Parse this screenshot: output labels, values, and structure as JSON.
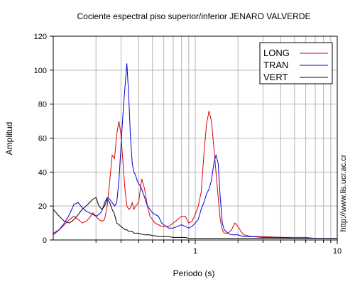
{
  "chart_data": {
    "type": "line",
    "title": "Cociente espectral piso superior/inferior  JENARO VALVERDE",
    "xlabel": "Periodo (s)",
    "ylabel": "Amplitud",
    "x_scale": "log",
    "xlim": [
      0.1,
      10
    ],
    "ylim": [
      0,
      120
    ],
    "x_tick_labels": [
      {
        "value": 1,
        "label": "1"
      },
      {
        "value": 10,
        "label": "10"
      }
    ],
    "y_ticks": [
      0,
      20,
      40,
      60,
      80,
      100,
      120
    ],
    "grid": true,
    "legend_position": "top-right",
    "series": [
      {
        "name": "LONG",
        "color": "#e00000",
        "x": [
          0.1,
          0.11,
          0.12,
          0.13,
          0.14,
          0.15,
          0.16,
          0.17,
          0.18,
          0.19,
          0.2,
          0.21,
          0.22,
          0.23,
          0.24,
          0.25,
          0.26,
          0.27,
          0.28,
          0.29,
          0.3,
          0.31,
          0.32,
          0.33,
          0.34,
          0.35,
          0.36,
          0.37,
          0.38,
          0.39,
          0.4,
          0.41,
          0.42,
          0.44,
          0.46,
          0.48,
          0.5,
          0.52,
          0.55,
          0.58,
          0.6,
          0.65,
          0.7,
          0.75,
          0.8,
          0.85,
          0.9,
          0.95,
          1.0,
          1.05,
          1.1,
          1.15,
          1.2,
          1.25,
          1.3,
          1.35,
          1.4,
          1.45,
          1.5,
          1.55,
          1.6,
          1.7,
          1.8,
          1.9,
          2.0,
          2.1,
          2.2,
          2.5,
          3,
          4,
          5,
          6,
          7,
          8,
          9,
          10
        ],
        "y": [
          4,
          6,
          9,
          12,
          14,
          12,
          10,
          11,
          13,
          16,
          14,
          12,
          11,
          12,
          20,
          35,
          50,
          48,
          62,
          70,
          62,
          45,
          30,
          20,
          18,
          19,
          22,
          18,
          20,
          21,
          22,
          30,
          36,
          30,
          20,
          14,
          12,
          10,
          9,
          8,
          8,
          8,
          10,
          12,
          14,
          14,
          10,
          11,
          15,
          20,
          28,
          50,
          68,
          76,
          70,
          55,
          40,
          25,
          12,
          6,
          4,
          4,
          6,
          10,
          8,
          5,
          3,
          2,
          2,
          1.5,
          1.5,
          1.5,
          1,
          1,
          1,
          1
        ]
      },
      {
        "name": "TRAN",
        "color": "#0000e0",
        "x": [
          0.1,
          0.11,
          0.12,
          0.13,
          0.14,
          0.15,
          0.16,
          0.17,
          0.18,
          0.19,
          0.2,
          0.21,
          0.22,
          0.23,
          0.24,
          0.25,
          0.26,
          0.27,
          0.28,
          0.29,
          0.3,
          0.31,
          0.32,
          0.33,
          0.34,
          0.35,
          0.36,
          0.37,
          0.38,
          0.39,
          0.4,
          0.41,
          0.42,
          0.44,
          0.46,
          0.48,
          0.5,
          0.52,
          0.55,
          0.58,
          0.6,
          0.65,
          0.7,
          0.75,
          0.8,
          0.85,
          0.9,
          0.95,
          1.0,
          1.05,
          1.1,
          1.15,
          1.2,
          1.25,
          1.3,
          1.35,
          1.4,
          1.45,
          1.5,
          1.55,
          1.6,
          1.7,
          1.8,
          1.9,
          2.0,
          2.1,
          2.2,
          2.5,
          3,
          4,
          5,
          6,
          7,
          8,
          9,
          10
        ],
        "y": [
          3,
          6,
          10,
          15,
          21,
          22,
          19,
          17,
          16,
          15,
          14,
          15,
          17,
          22,
          25,
          24,
          22,
          20,
          22,
          35,
          55,
          75,
          90,
          104,
          85,
          60,
          45,
          40,
          38,
          35,
          33,
          32,
          30,
          25,
          20,
          18,
          16,
          15,
          14,
          10,
          9,
          7,
          7,
          8,
          9,
          8,
          7,
          8,
          10,
          12,
          18,
          22,
          27,
          30,
          35,
          45,
          50,
          45,
          25,
          10,
          6,
          4,
          3,
          3,
          3,
          2.5,
          2,
          2,
          1.5,
          1.5,
          1,
          1,
          1,
          1,
          1,
          1
        ]
      },
      {
        "name": "VERT",
        "color": "#000000",
        "x": [
          0.1,
          0.11,
          0.12,
          0.13,
          0.14,
          0.15,
          0.16,
          0.17,
          0.18,
          0.19,
          0.2,
          0.21,
          0.22,
          0.23,
          0.24,
          0.25,
          0.26,
          0.27,
          0.28,
          0.29,
          0.3,
          0.31,
          0.32,
          0.33,
          0.34,
          0.35,
          0.36,
          0.37,
          0.38,
          0.39,
          0.4,
          0.41,
          0.42,
          0.44,
          0.46,
          0.48,
          0.5,
          0.52,
          0.55,
          0.58,
          0.6,
          0.65,
          0.7,
          0.75,
          0.8,
          0.85,
          0.9,
          0.95,
          1.0,
          1.05,
          1.1,
          1.15,
          1.2,
          1.25,
          1.3,
          1.35,
          1.4,
          1.45,
          1.5,
          1.55,
          1.6,
          1.7,
          1.8,
          1.9,
          2.0,
          2.1,
          2.2,
          2.5,
          3,
          4,
          5,
          6,
          7,
          8,
          9,
          10
        ],
        "y": [
          18,
          14,
          11,
          10,
          12,
          15,
          18,
          20,
          22,
          24,
          25,
          20,
          18,
          20,
          24,
          22,
          18,
          15,
          10,
          9,
          8,
          7,
          6,
          6,
          5,
          5,
          5,
          4,
          4,
          4,
          4,
          3.5,
          3.5,
          3,
          3,
          3,
          2.5,
          2.5,
          2,
          2,
          2,
          2,
          1.5,
          1.5,
          1.5,
          1.5,
          1,
          1,
          1,
          1,
          1,
          1,
          1,
          1,
          1,
          1,
          1,
          1,
          1,
          1,
          1,
          1,
          1,
          1,
          1,
          1,
          1,
          1,
          1,
          1,
          1,
          1,
          1,
          1,
          1,
          1
        ]
      }
    ],
    "side_text": "http://www.lis.ucr.ac.cr"
  }
}
